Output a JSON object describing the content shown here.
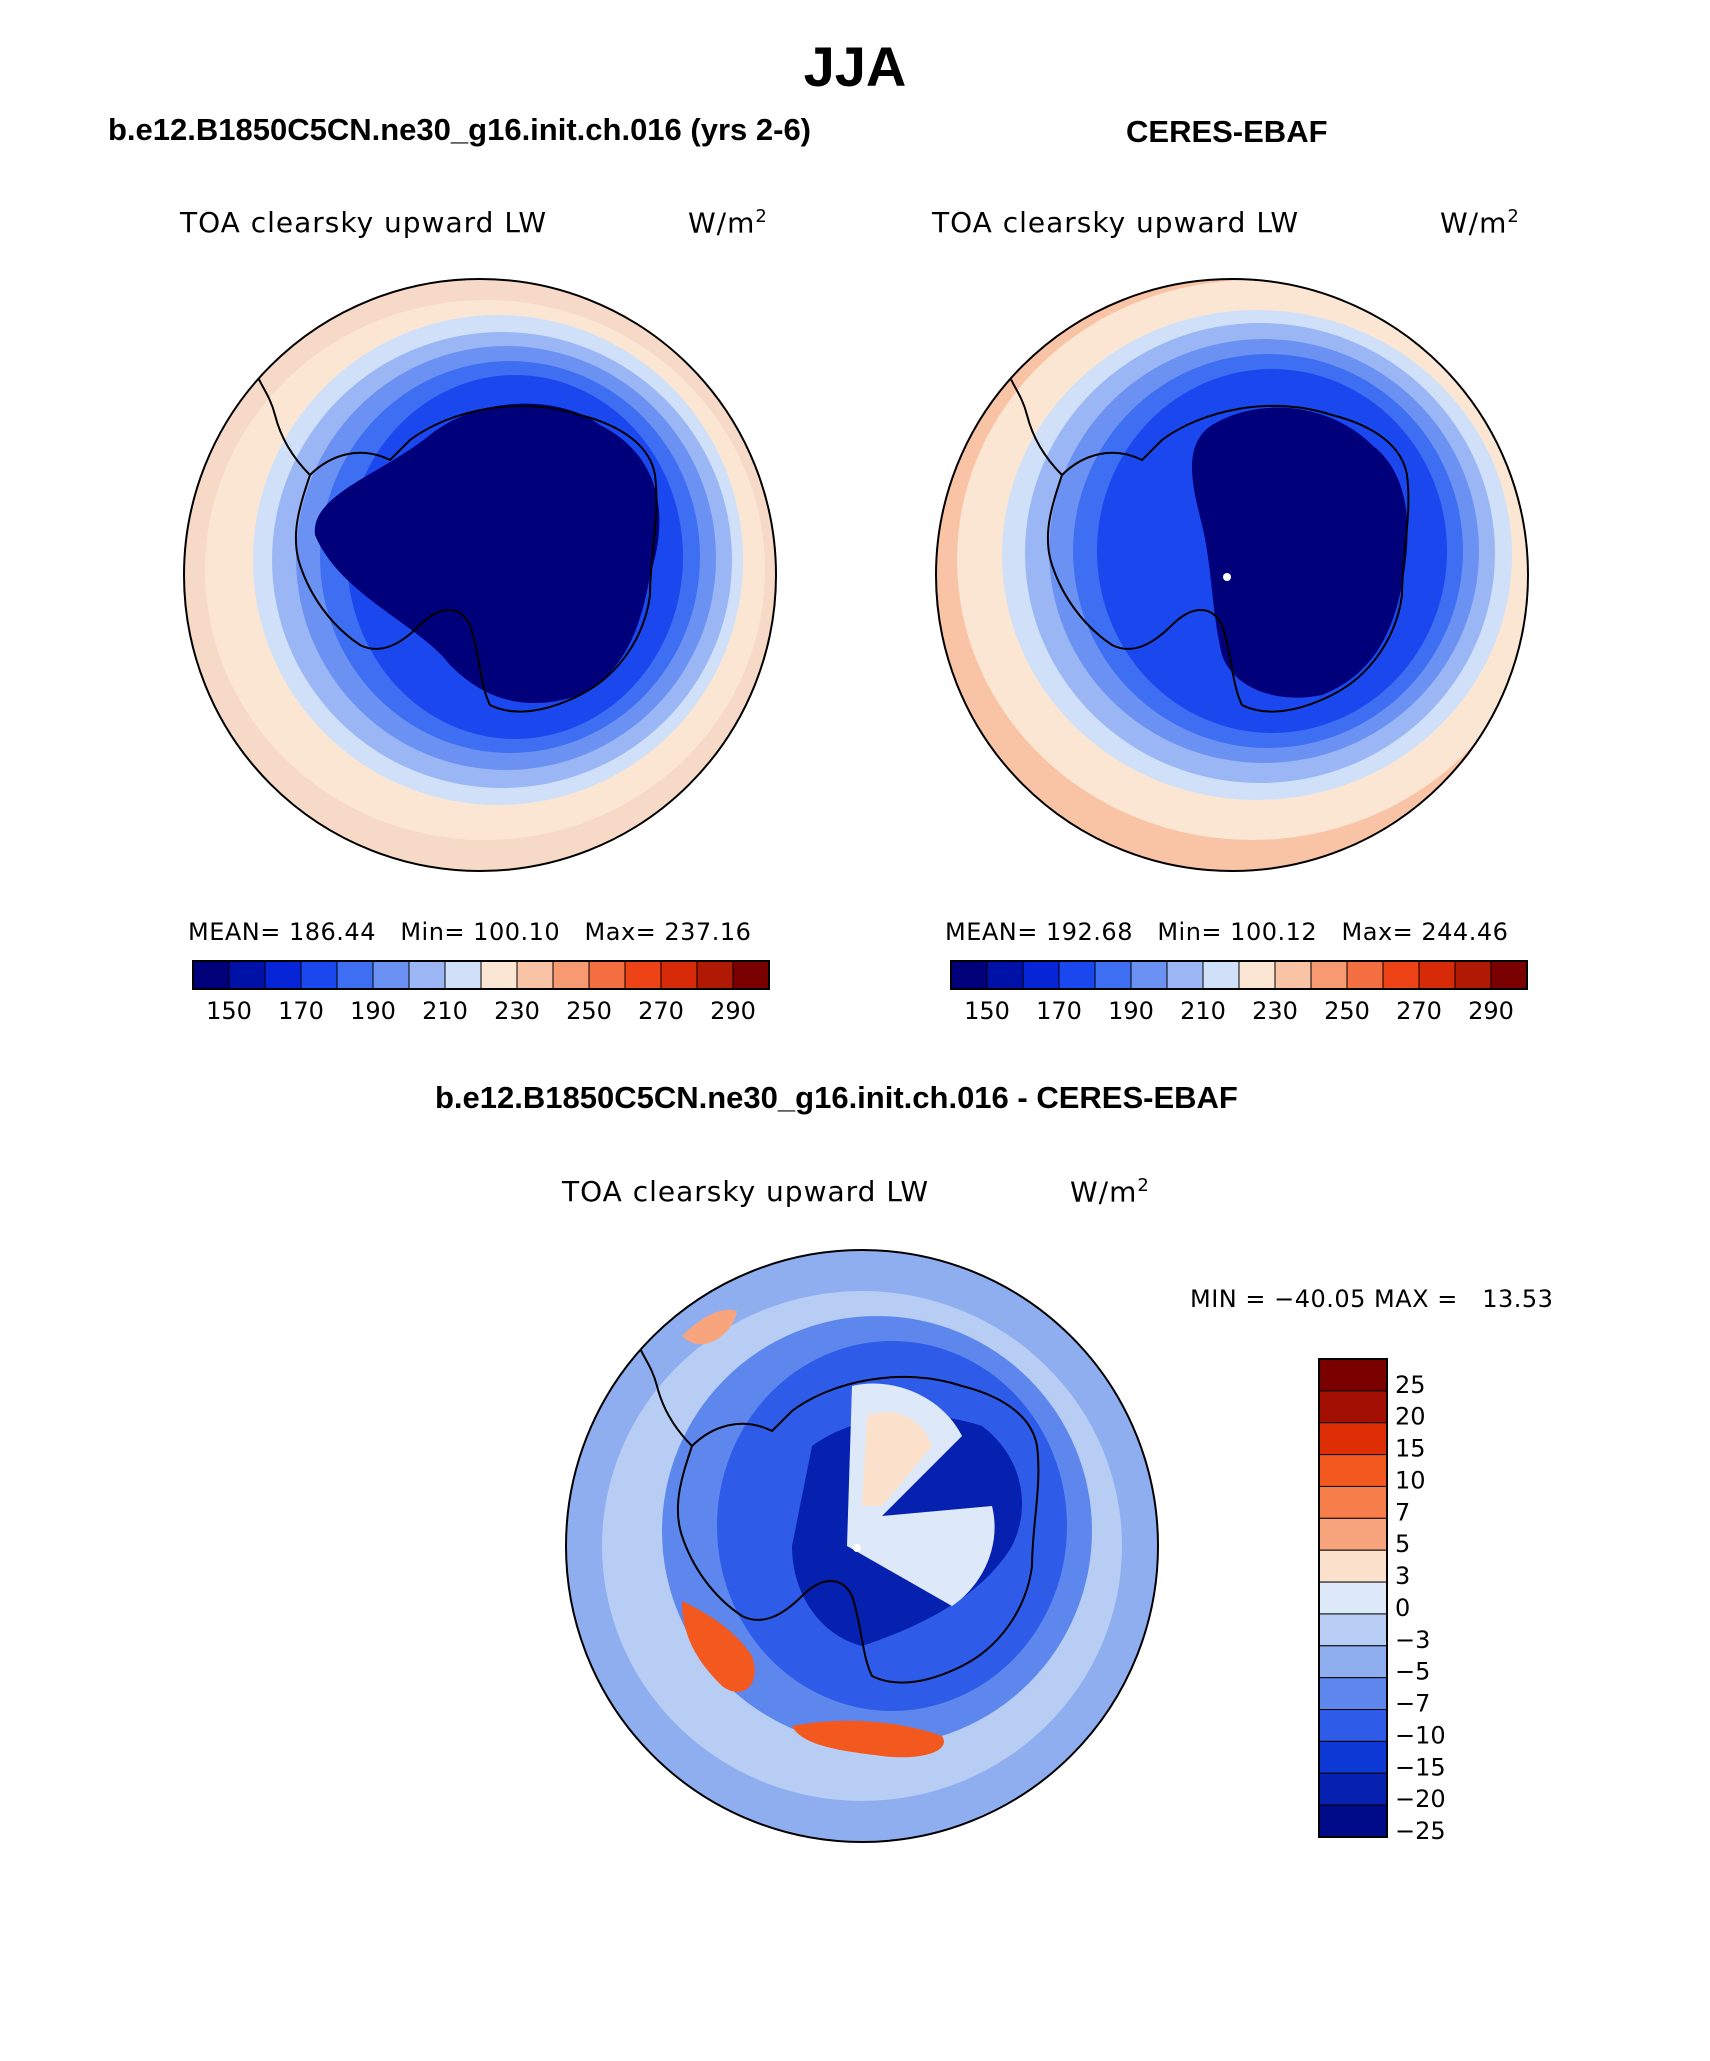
{
  "page_title": "JJA",
  "panels": [
    {
      "heading": "b.e12.B1850C5CN.ne30_g16.init.ch.016 (yrs 2-6)",
      "variable": "TOA clearsky upward LW",
      "units_base": "W/m",
      "units_exp": "2",
      "stats": "MEAN= 186.44   Min= 100.10   Max= 237.16"
    },
    {
      "heading": "CERES-EBAF",
      "variable": "TOA clearsky upward LW",
      "units_base": "W/m",
      "units_exp": "2",
      "stats": "MEAN= 192.68   Min= 100.12   Max= 244.46"
    }
  ],
  "difference": {
    "heading": "b.e12.B1850C5CN.ne30_g16.init.ch.016 - CERES-EBAF",
    "variable": "TOA clearsky upward LW",
    "units_base": "W/m",
    "units_exp": "2",
    "minmax": "MIN = −40.05 MAX =   13.53"
  },
  "chart_data": [
    {
      "type": "contour-map",
      "title": "b.e12.B1850C5CN.ne30_g16.init.ch.016 (yrs 2-6)",
      "variable": "TOA clearsky upward LW",
      "units": "W/m2",
      "projection": "south-polar-stereographic",
      "mean": 186.44,
      "min": 100.1,
      "max": 237.16,
      "levels": [
        150,
        160,
        170,
        180,
        190,
        200,
        210,
        220,
        230,
        240,
        250,
        260,
        270,
        280,
        290
      ],
      "level_labels": [
        "150",
        "170",
        "190",
        "210",
        "230",
        "250",
        "270",
        "290"
      ]
    },
    {
      "type": "contour-map",
      "title": "CERES-EBAF",
      "variable": "TOA clearsky upward LW",
      "units": "W/m2",
      "projection": "south-polar-stereographic",
      "mean": 192.68,
      "min": 100.12,
      "max": 244.46,
      "levels": [
        150,
        160,
        170,
        180,
        190,
        200,
        210,
        220,
        230,
        240,
        250,
        260,
        270,
        280,
        290
      ],
      "level_labels": [
        "150",
        "170",
        "190",
        "210",
        "230",
        "250",
        "270",
        "290"
      ]
    },
    {
      "type": "contour-map",
      "title": "b.e12.B1850C5CN.ne30_g16.init.ch.016 - CERES-EBAF",
      "variable": "TOA clearsky upward LW",
      "units": "W/m2",
      "projection": "south-polar-stereographic",
      "min": -40.05,
      "max": 13.53,
      "levels": [
        25,
        20,
        15,
        10,
        7,
        5,
        3,
        0,
        -3,
        -5,
        -7,
        -10,
        -15,
        -20,
        -25
      ],
      "level_labels": [
        "25",
        "20",
        "15",
        "10",
        "7",
        "5",
        "3",
        "0",
        "−3",
        "−5",
        "−7",
        "−10",
        "−15",
        "−20",
        "−25"
      ]
    }
  ],
  "colors": {
    "abs_scale": [
      "#00007a",
      "#0011a8",
      "#0525d6",
      "#1a48ee",
      "#3e6ef2",
      "#6b92f2",
      "#9bb6f5",
      "#cfe0f8",
      "#fbe6d4",
      "#f9c3a6",
      "#f79a72",
      "#f36e41",
      "#ee4316",
      "#d62a08",
      "#b01a05",
      "#7a0000"
    ],
    "diff_scale": [
      "#7a0000",
      "#a40f04",
      "#dd2e06",
      "#f3581e",
      "#f67e4a",
      "#f8a57d",
      "#fbe1cc",
      "#dde9f8",
      "#b7cdf4",
      "#8faef0",
      "#5d87ec",
      "#2e5ce9",
      "#0e38d6",
      "#0620b0",
      "#000b8a"
    ],
    "ocean_mid": "#fbe6d4",
    "coast": "#000000"
  }
}
